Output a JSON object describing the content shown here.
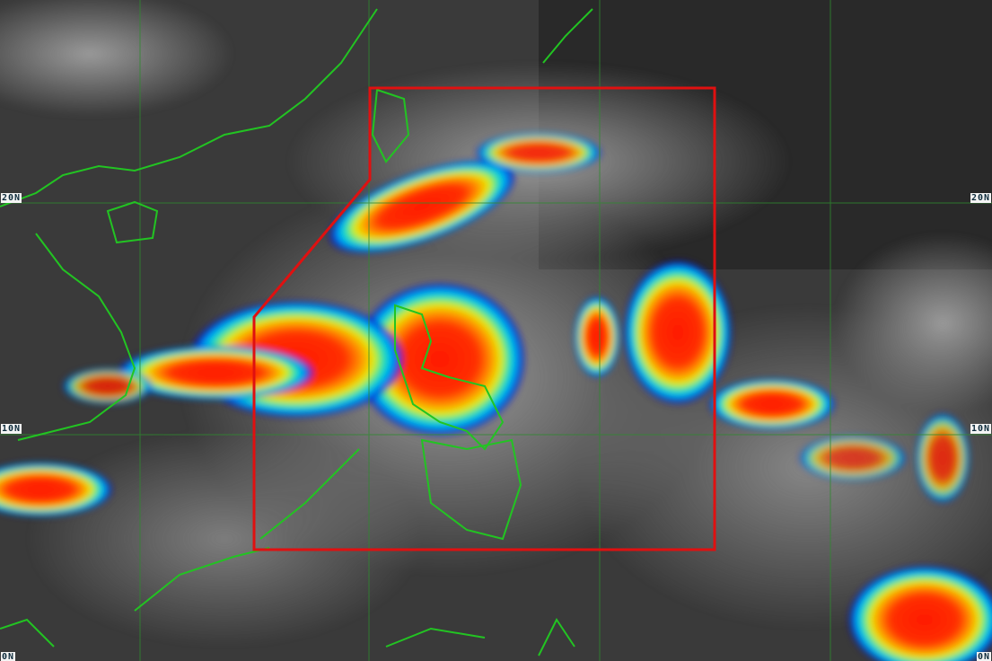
{
  "latitude_labels": {
    "lat20_left": "20N",
    "lat20_right": "20N",
    "lat10_left": "10N",
    "lat10_right": "10N",
    "lat0_left": "0N",
    "lat0_right": "0N"
  },
  "colors": {
    "par_boundary": "#e01010",
    "coastline": "#22c422",
    "gridline": "#2f8a2f",
    "convection_scale": [
      "#0000c8",
      "#00a0ff",
      "#00e0c0",
      "#e8f000",
      "#ff9000",
      "#ff1a00"
    ]
  },
  "overlays": [
    "Philippine Area of Responsibility boundary",
    "coastlines",
    "lat/lon grid"
  ]
}
